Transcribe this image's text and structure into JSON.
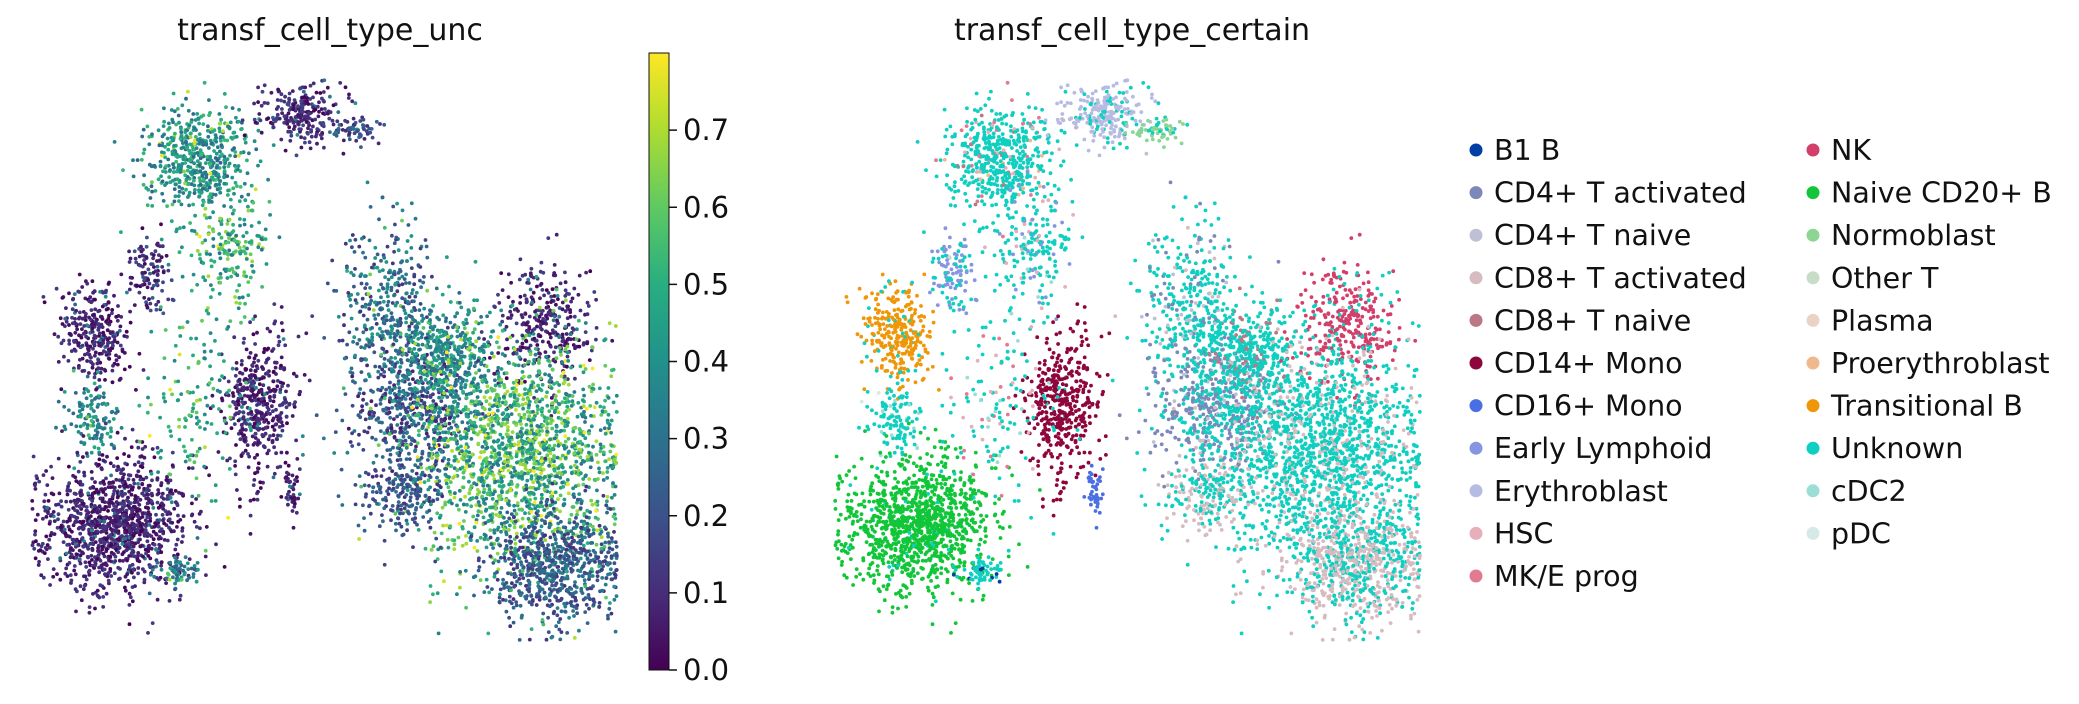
{
  "chart_data": [
    {
      "type": "scatter",
      "title": "transf_cell_type_unc",
      "color_scale": "viridis",
      "colorbar": {
        "range": [
          0.0,
          0.8
        ],
        "ticks": [
          "0.0",
          "0.1",
          "0.2",
          "0.3",
          "0.4",
          "0.5",
          "0.6",
          "0.7"
        ]
      },
      "axes_visible": false,
      "grid": false
    },
    {
      "type": "scatter",
      "title": "transf_cell_type_certain",
      "axes_visible": false,
      "grid": false,
      "legend_position": "right",
      "categories": [
        {
          "name": "B1 B",
          "color": "#023fa5"
        },
        {
          "name": "CD4+ T activated",
          "color": "#7d87b9"
        },
        {
          "name": "CD4+ T naive",
          "color": "#bec1d4"
        },
        {
          "name": "CD8+ T activated",
          "color": "#d6bcc0"
        },
        {
          "name": "CD8+ T naive",
          "color": "#bb7784"
        },
        {
          "name": "CD14+ Mono",
          "color": "#8e063b"
        },
        {
          "name": "CD16+ Mono",
          "color": "#4a6fe3"
        },
        {
          "name": "Early Lymphoid",
          "color": "#8595e1"
        },
        {
          "name": "Erythroblast",
          "color": "#b5bbe3"
        },
        {
          "name": "HSC",
          "color": "#e6afb9"
        },
        {
          "name": "MK/E prog",
          "color": "#e07b91"
        },
        {
          "name": "NK",
          "color": "#d33f6a"
        },
        {
          "name": "Naive CD20+ B",
          "color": "#11c638"
        },
        {
          "name": "Normoblast",
          "color": "#8dd593"
        },
        {
          "name": "Other T",
          "color": "#c6dec7"
        },
        {
          "name": "Plasma",
          "color": "#ead3c6"
        },
        {
          "name": "Proerythroblast",
          "color": "#f0b98d"
        },
        {
          "name": "Transitional B",
          "color": "#ef9708"
        },
        {
          "name": "Unknown",
          "color": "#0fcfc0"
        },
        {
          "name": "cDC2",
          "color": "#9cded6"
        },
        {
          "name": "pDC",
          "color": "#d5eae7"
        }
      ]
    }
  ]
}
